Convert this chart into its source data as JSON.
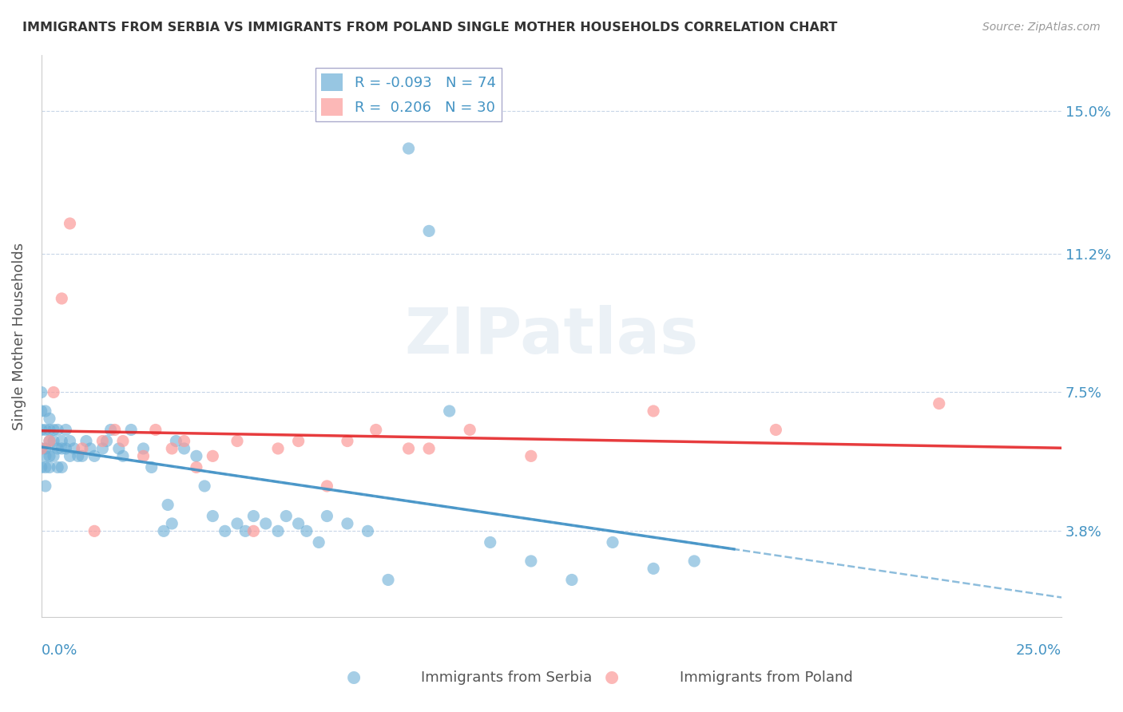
{
  "title": "IMMIGRANTS FROM SERBIA VS IMMIGRANTS FROM POLAND SINGLE MOTHER HOUSEHOLDS CORRELATION CHART",
  "source": "Source: ZipAtlas.com",
  "ylabel": "Single Mother Households",
  "ytick_labels": [
    "15.0%",
    "11.2%",
    "7.5%",
    "3.8%"
  ],
  "ytick_values": [
    0.15,
    0.112,
    0.075,
    0.038
  ],
  "xlim": [
    0.0,
    0.25
  ],
  "ylim": [
    0.015,
    0.165
  ],
  "legend_serbia": "Immigrants from Serbia",
  "legend_poland": "Immigrants from Poland",
  "R_serbia": -0.093,
  "N_serbia": 74,
  "R_poland": 0.206,
  "N_poland": 30,
  "color_serbia": "#6baed6",
  "color_poland": "#fb9a99",
  "color_serbia_line": "#4292c6",
  "color_poland_line": "#e31a1c",
  "color_axis_labels": "#4393c3",
  "serbia_x": [
    0.0,
    0.0,
    0.0,
    0.0,
    0.0,
    0.001,
    0.001,
    0.001,
    0.001,
    0.001,
    0.001,
    0.002,
    0.002,
    0.002,
    0.002,
    0.002,
    0.003,
    0.003,
    0.003,
    0.004,
    0.004,
    0.004,
    0.005,
    0.005,
    0.005,
    0.006,
    0.006,
    0.007,
    0.007,
    0.008,
    0.009,
    0.01,
    0.011,
    0.012,
    0.013,
    0.015,
    0.016,
    0.017,
    0.019,
    0.02,
    0.022,
    0.025,
    0.027,
    0.03,
    0.031,
    0.032,
    0.033,
    0.035,
    0.038,
    0.04,
    0.042,
    0.045,
    0.048,
    0.05,
    0.052,
    0.055,
    0.058,
    0.06,
    0.063,
    0.065,
    0.068,
    0.07,
    0.075,
    0.08,
    0.085,
    0.09,
    0.095,
    0.1,
    0.11,
    0.12,
    0.13,
    0.14,
    0.15,
    0.16
  ],
  "serbia_y": [
    0.075,
    0.07,
    0.065,
    0.06,
    0.055,
    0.07,
    0.065,
    0.06,
    0.058,
    0.055,
    0.05,
    0.068,
    0.065,
    0.062,
    0.058,
    0.055,
    0.065,
    0.062,
    0.058,
    0.065,
    0.06,
    0.055,
    0.062,
    0.06,
    0.055,
    0.065,
    0.06,
    0.062,
    0.058,
    0.06,
    0.058,
    0.058,
    0.062,
    0.06,
    0.058,
    0.06,
    0.062,
    0.065,
    0.06,
    0.058,
    0.065,
    0.06,
    0.055,
    0.038,
    0.045,
    0.04,
    0.062,
    0.06,
    0.058,
    0.05,
    0.042,
    0.038,
    0.04,
    0.038,
    0.042,
    0.04,
    0.038,
    0.042,
    0.04,
    0.038,
    0.035,
    0.042,
    0.04,
    0.038,
    0.025,
    0.14,
    0.118,
    0.07,
    0.035,
    0.03,
    0.025,
    0.035,
    0.028,
    0.03
  ],
  "poland_x": [
    0.0,
    0.002,
    0.003,
    0.005,
    0.007,
    0.01,
    0.013,
    0.015,
    0.018,
    0.02,
    0.025,
    0.028,
    0.032,
    0.035,
    0.038,
    0.042,
    0.048,
    0.052,
    0.058,
    0.063,
    0.07,
    0.075,
    0.082,
    0.09,
    0.095,
    0.105,
    0.12,
    0.15,
    0.18,
    0.22
  ],
  "poland_y": [
    0.06,
    0.062,
    0.075,
    0.1,
    0.12,
    0.06,
    0.038,
    0.062,
    0.065,
    0.062,
    0.058,
    0.065,
    0.06,
    0.062,
    0.055,
    0.058,
    0.062,
    0.038,
    0.06,
    0.062,
    0.05,
    0.062,
    0.065,
    0.06,
    0.06,
    0.065,
    0.058,
    0.07,
    0.065,
    0.072
  ]
}
